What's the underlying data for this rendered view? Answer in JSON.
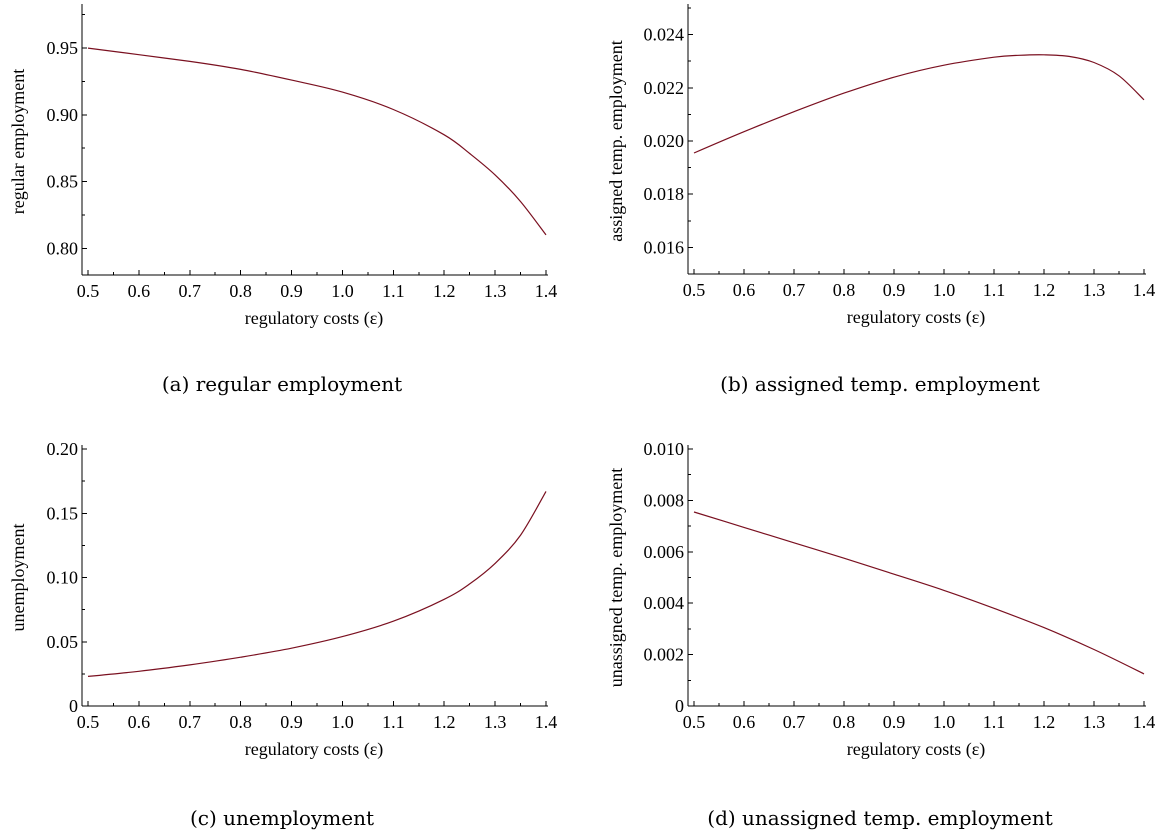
{
  "chart_data": [
    {
      "type": "line",
      "caption": "(a) regular employment",
      "xlabel": "regulatory costs (ε)",
      "ylabel": "regular employment",
      "xlim": [
        0.5,
        1.4
      ],
      "ylim": [
        0.78,
        0.98
      ],
      "xticks": [
        0.5,
        0.6,
        0.7,
        0.8,
        0.9,
        1.0,
        1.1,
        1.2,
        1.3,
        1.4
      ],
      "xticklabels": [
        "0.5",
        "0.6",
        "0.7",
        "0.8",
        "0.9",
        "1.0",
        "1.1",
        "1.2",
        "1.3",
        "1.4"
      ],
      "yticks": [
        0.8,
        0.85,
        0.9,
        0.95
      ],
      "yticklabels": [
        "0.80",
        "0.85",
        "0.90",
        "0.95"
      ],
      "series": [
        {
          "color": "#7a1020",
          "x": [
            0.5,
            0.6,
            0.7,
            0.8,
            0.9,
            1.0,
            1.1,
            1.2,
            1.25,
            1.3,
            1.35,
            1.4
          ],
          "y": [
            0.95,
            0.945,
            0.94,
            0.934,
            0.926,
            0.917,
            0.904,
            0.885,
            0.871,
            0.855,
            0.835,
            0.81
          ]
        }
      ]
    },
    {
      "type": "line",
      "caption": "(b) assigned temp. employment",
      "xlabel": "regulatory costs (ε)",
      "ylabel": "assigned temp. employment",
      "xlim": [
        0.5,
        1.4
      ],
      "ylim": [
        0.015,
        0.025
      ],
      "xticks": [
        0.5,
        0.6,
        0.7,
        0.8,
        0.9,
        1.0,
        1.1,
        1.2,
        1.3,
        1.4
      ],
      "xticklabels": [
        "0.5",
        "0.6",
        "0.7",
        "0.8",
        "0.9",
        "1.0",
        "1.1",
        "1.2",
        "1.3",
        "1.4"
      ],
      "yticks": [
        0.016,
        0.018,
        0.02,
        0.022,
        0.024
      ],
      "yticklabels": [
        "0.016",
        "0.018",
        "0.020",
        "0.022",
        "0.024"
      ],
      "series": [
        {
          "color": "#7a1020",
          "x": [
            0.5,
            0.6,
            0.7,
            0.8,
            0.9,
            1.0,
            1.1,
            1.15,
            1.2,
            1.25,
            1.3,
            1.35,
            1.4
          ],
          "y": [
            0.01955,
            0.02035,
            0.0211,
            0.0218,
            0.0224,
            0.02285,
            0.02315,
            0.02322,
            0.02324,
            0.02318,
            0.02295,
            0.02245,
            0.02155
          ]
        }
      ]
    },
    {
      "type": "line",
      "caption": "(c) unemployment",
      "xlabel": "regulatory costs (ε)",
      "ylabel": "unemployment",
      "xlim": [
        0.5,
        1.4
      ],
      "ylim": [
        0,
        0.2
      ],
      "xticks": [
        0.5,
        0.6,
        0.7,
        0.8,
        0.9,
        1.0,
        1.1,
        1.2,
        1.3,
        1.4
      ],
      "xticklabels": [
        "0.5",
        "0.6",
        "0.7",
        "0.8",
        "0.9",
        "1.0",
        "1.1",
        "1.2",
        "1.3",
        "1.4"
      ],
      "yticks": [
        0,
        0.05,
        0.1,
        0.15,
        0.2
      ],
      "yticklabels": [
        "0",
        "0.05",
        "0.10",
        "0.15",
        "0.20"
      ],
      "series": [
        {
          "color": "#7a1020",
          "x": [
            0.5,
            0.6,
            0.7,
            0.8,
            0.9,
            1.0,
            1.1,
            1.2,
            1.25,
            1.3,
            1.35,
            1.4
          ],
          "y": [
            0.023,
            0.027,
            0.032,
            0.038,
            0.045,
            0.054,
            0.066,
            0.083,
            0.095,
            0.111,
            0.133,
            0.167
          ]
        }
      ]
    },
    {
      "type": "line",
      "caption": "(d) unassigned temp. employment",
      "xlabel": "regulatory costs (ε)",
      "ylabel": "unassigned temp. employment",
      "xlim": [
        0.5,
        1.4
      ],
      "ylim": [
        0,
        0.01
      ],
      "xticks": [
        0.5,
        0.6,
        0.7,
        0.8,
        0.9,
        1.0,
        1.1,
        1.2,
        1.3,
        1.4
      ],
      "xticklabels": [
        "0.5",
        "0.6",
        "0.7",
        "0.8",
        "0.9",
        "1.0",
        "1.1",
        "1.2",
        "1.3",
        "1.4"
      ],
      "yticks": [
        0,
        0.002,
        0.004,
        0.006,
        0.008,
        0.01
      ],
      "yticklabels": [
        "0",
        "0.002",
        "0.004",
        "0.006",
        "0.008",
        "0.010"
      ],
      "series": [
        {
          "color": "#7a1020",
          "x": [
            0.5,
            0.6,
            0.7,
            0.8,
            0.9,
            1.0,
            1.1,
            1.2,
            1.3,
            1.4
          ],
          "y": [
            0.00755,
            0.00695,
            0.00635,
            0.00575,
            0.00513,
            0.0045,
            0.0038,
            0.00305,
            0.0022,
            0.00125
          ]
        }
      ]
    }
  ]
}
